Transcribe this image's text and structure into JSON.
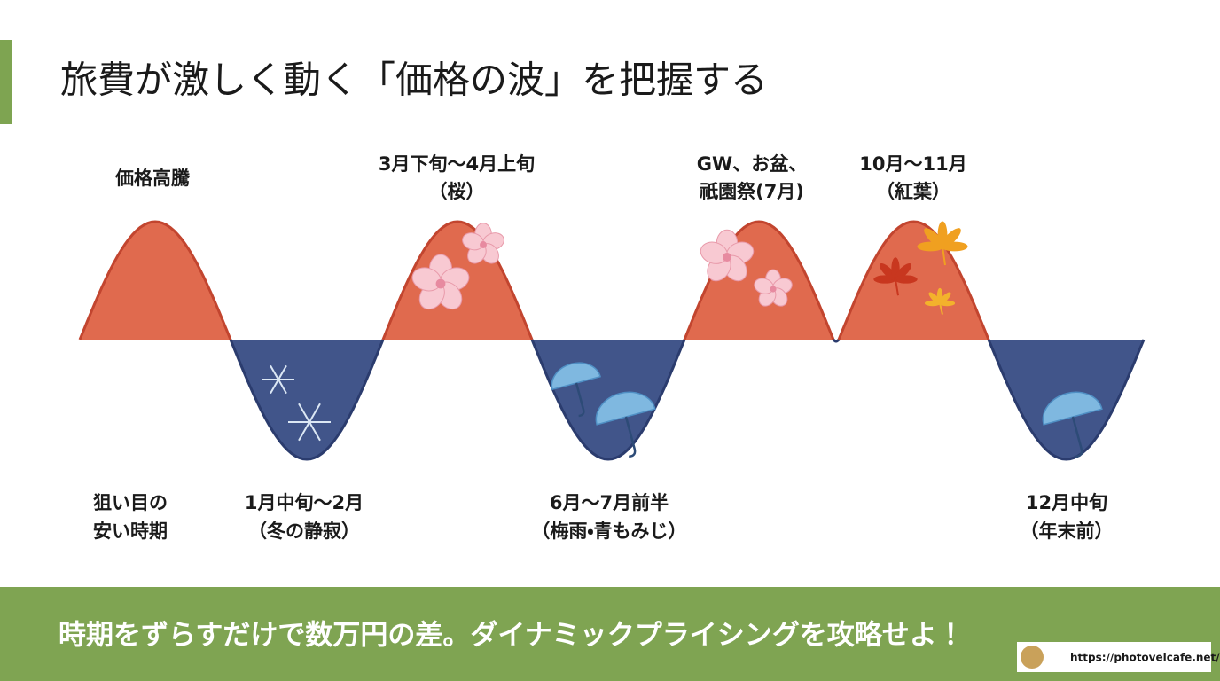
{
  "title": "旅費が激しく動く「価格の波」を把握する",
  "high_label": "価格高騰",
  "low_label": [
    "狙い目の",
    "安い時期"
  ],
  "peaks": [
    {
      "lines": [
        "3月下旬～4月上旬",
        "（桜）"
      ]
    },
    {
      "lines": [
        "GW、お盆、",
        "祇園祭(7月)"
      ]
    },
    {
      "lines": [
        "10月～11月",
        "（紅葉）"
      ]
    }
  ],
  "troughs": [
    {
      "lines": [
        "1月中旬～2月",
        "（冬の静寂）"
      ]
    },
    {
      "lines": [
        "6月～7月前半",
        "（梅雨・青もみじ）"
      ]
    },
    {
      "lines": [
        "12月中旬",
        "（年末前）"
      ]
    }
  ],
  "footer": "時期をずらすだけで数万円の差。ダイナミックプライシングを攻略せよ！",
  "watermark": "https://photovelcafe.net/"
}
